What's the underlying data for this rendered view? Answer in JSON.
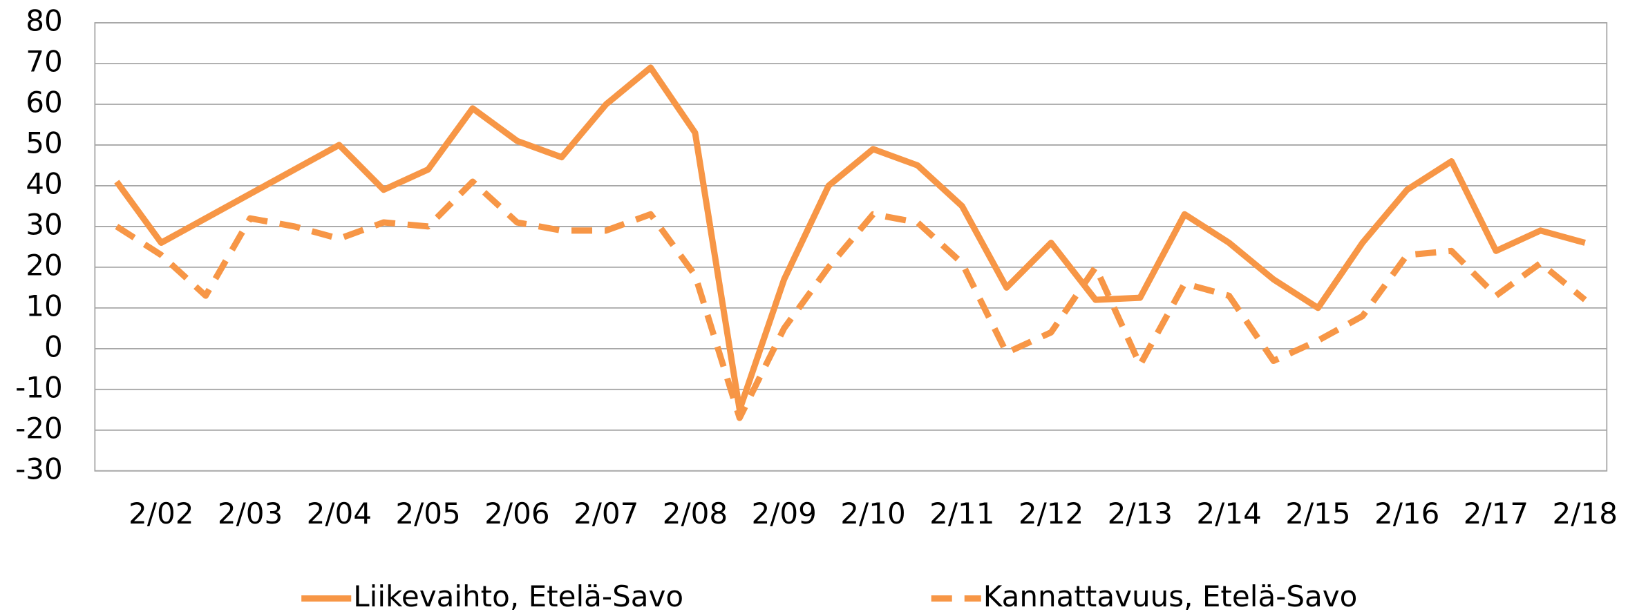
{
  "chart_data": {
    "type": "line",
    "categories": [
      null,
      "2/02",
      null,
      "2/03",
      null,
      "2/04",
      null,
      "2/05",
      null,
      "2/06",
      null,
      "2/07",
      null,
      "2/08",
      null,
      "2/09",
      null,
      "2/10",
      null,
      "2/11",
      null,
      "2/12",
      null,
      "2/13",
      null,
      "2/14",
      null,
      "2/15",
      null,
      "2/16",
      null,
      "2/17",
      null,
      "2/18"
    ],
    "series": [
      {
        "name": "Liikevaihto, Etelä-Savo",
        "color": "#f79646",
        "dash": false,
        "values": [
          41,
          26,
          32,
          38,
          44,
          50,
          39,
          44,
          59,
          51,
          47,
          60,
          69,
          53,
          -15,
          17,
          40,
          49,
          45,
          35,
          15,
          26,
          12,
          12.5,
          33,
          26,
          17,
          10,
          26,
          39,
          46,
          24,
          29,
          26
        ]
      },
      {
        "name": "Kannattavuus, Etelä-Savo",
        "color": "#f79646",
        "dash": true,
        "values": [
          30,
          23,
          13,
          32,
          30,
          27,
          31,
          30,
          41,
          31,
          29,
          29,
          33,
          18,
          -17,
          5,
          20,
          33,
          31,
          21,
          -1,
          4,
          20,
          -4,
          16,
          13,
          -3,
          2,
          8,
          23,
          24,
          13,
          21,
          12
        ]
      }
    ],
    "ylim": [
      -30,
      80
    ],
    "yticks": [
      -30,
      -20,
      -10,
      0,
      10,
      20,
      30,
      40,
      50,
      60,
      70,
      80
    ],
    "grid": true,
    "legend": "bottom"
  }
}
